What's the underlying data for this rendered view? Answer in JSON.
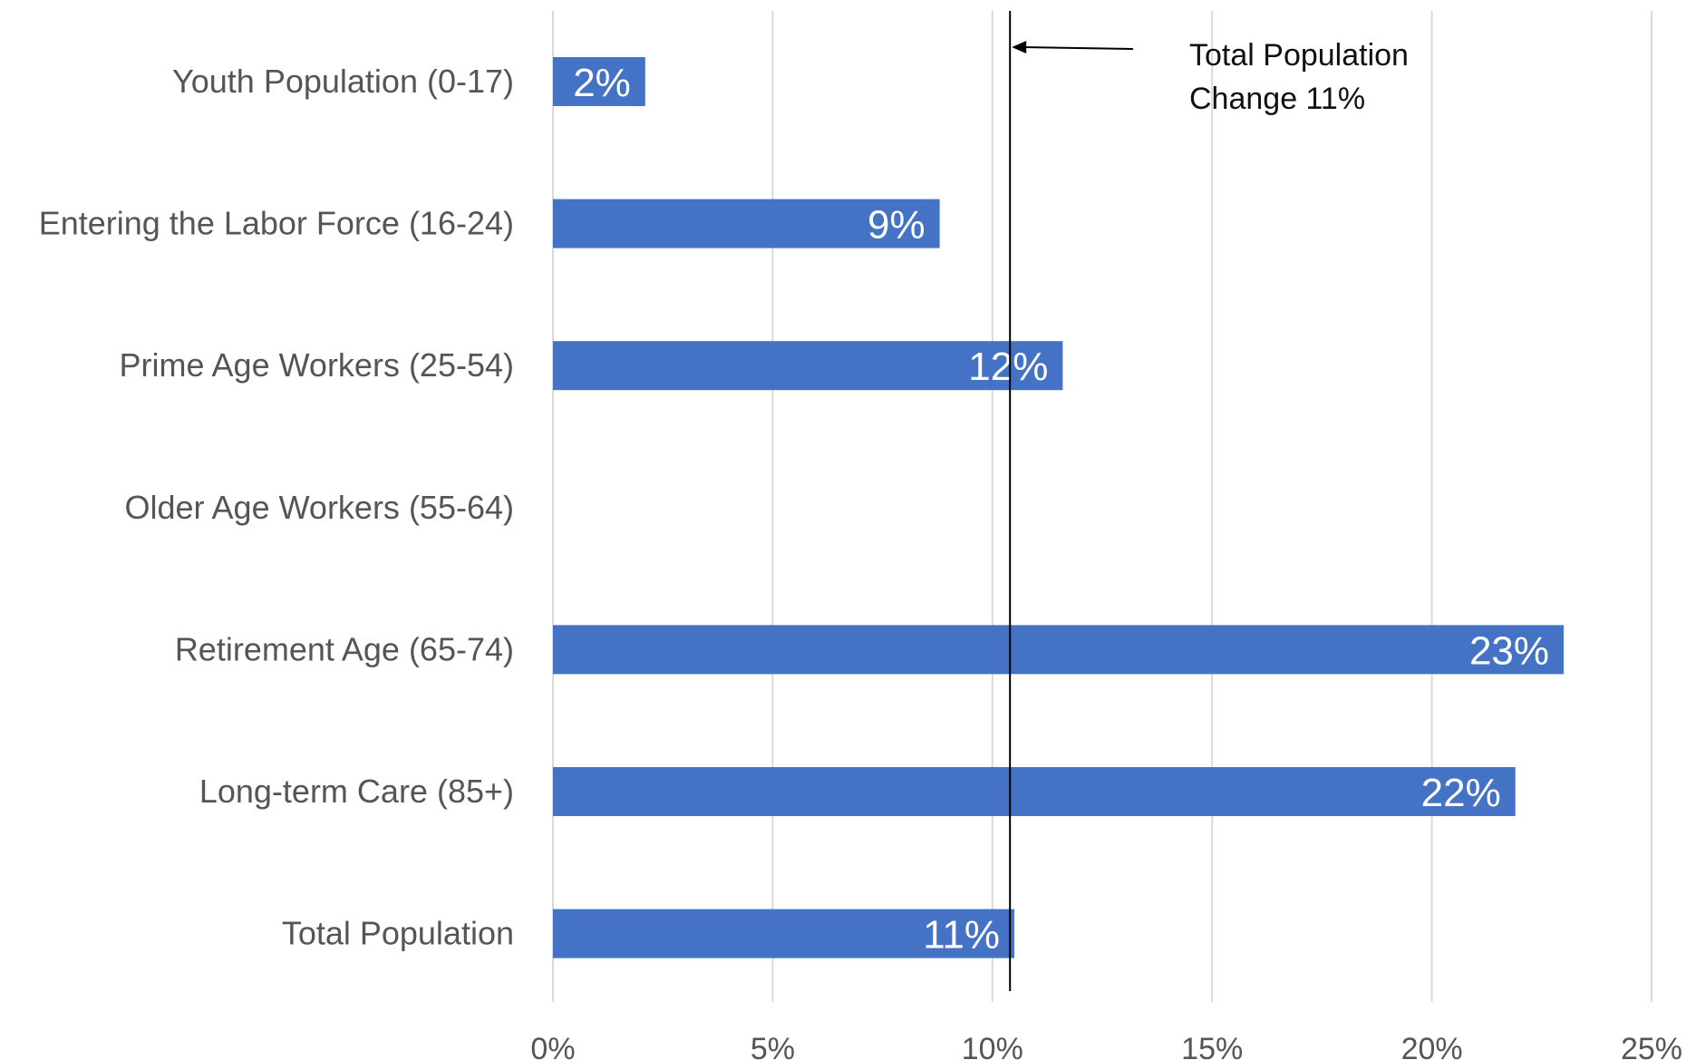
{
  "chart_data": {
    "type": "bar",
    "orientation": "horizontal",
    "categories": [
      "Youth Population (0-17)",
      "Entering the Labor Force (16-24)",
      "Prime Age Workers (25-54)",
      "Older Age Workers (55-64)",
      "Retirement Age (65-74)",
      "Long-term Care (85+)",
      "Total Population"
    ],
    "values": [
      2.1,
      8.8,
      11.6,
      0,
      23.0,
      21.9,
      10.5
    ],
    "value_labels": [
      "2%",
      "9%",
      "12%",
      "",
      "23%",
      "22%",
      "11%"
    ],
    "x_ticks": [
      "0%",
      "5%",
      "10%",
      "15%",
      "20%",
      "25%"
    ],
    "x_tick_values": [
      0,
      5,
      10,
      15,
      20,
      25
    ],
    "xlim": [
      0,
      25
    ],
    "grid": "vertical",
    "bar_color": "#4472C4",
    "reference_line": {
      "value": 10.4
    },
    "annotation": {
      "line1": "Total Population",
      "line2": "Change 11%"
    }
  }
}
